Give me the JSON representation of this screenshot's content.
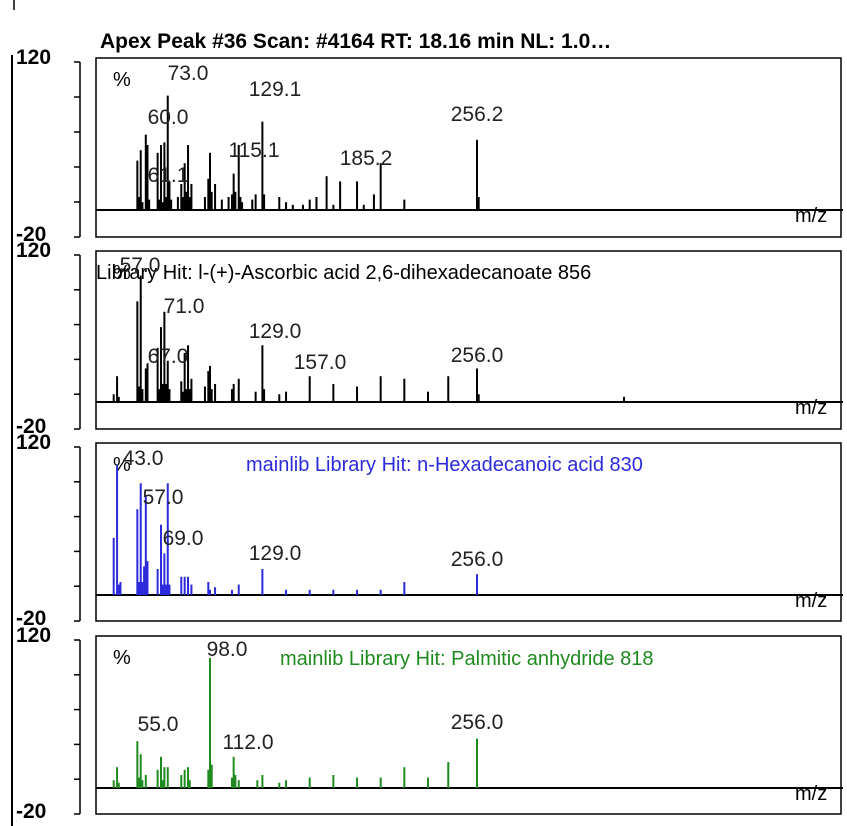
{
  "header": "Apex Peak #36 Scan: #4164   RT: 18.16 min NL: 1.0…",
  "colors": {
    "black": "#000000",
    "blue": "#2b2bdc",
    "green": "#1f8a1f"
  },
  "chart_data": [
    {
      "type": "bar",
      "series_label": "",
      "color": "black",
      "ylim": [
        -20,
        120
      ],
      "tick_labels": [
        "120",
        "-20"
      ],
      "y_unit": "%",
      "x_axis_label": "m/z",
      "peaks": [
        [
          55,
          38
        ],
        [
          56,
          10
        ],
        [
          57,
          46
        ],
        [
          58,
          6
        ],
        [
          60,
          58
        ],
        [
          61,
          50
        ],
        [
          62,
          8
        ],
        [
          67,
          44
        ],
        [
          68,
          8
        ],
        [
          69,
          50
        ],
        [
          70,
          6
        ],
        [
          71,
          52
        ],
        [
          72,
          10
        ],
        [
          73,
          88
        ],
        [
          74,
          22
        ],
        [
          75,
          8
        ],
        [
          79,
          10
        ],
        [
          81,
          20
        ],
        [
          82,
          10
        ],
        [
          83,
          36
        ],
        [
          84,
          14
        ],
        [
          85,
          50
        ],
        [
          86,
          10
        ],
        [
          87,
          20
        ],
        [
          95,
          10
        ],
        [
          97,
          24
        ],
        [
          98,
          44
        ],
        [
          99,
          14
        ],
        [
          101,
          20
        ],
        [
          105,
          8
        ],
        [
          109,
          10
        ],
        [
          111,
          12
        ],
        [
          112,
          28
        ],
        [
          113,
          14
        ],
        [
          115,
          50
        ],
        [
          116,
          10
        ],
        [
          117,
          6
        ],
        [
          123,
          8
        ],
        [
          125,
          12
        ],
        [
          129,
          68
        ],
        [
          130,
          12
        ],
        [
          139,
          10
        ],
        [
          143,
          6
        ],
        [
          147,
          4
        ],
        [
          153,
          4
        ],
        [
          157,
          8
        ],
        [
          161,
          10
        ],
        [
          167,
          26
        ],
        [
          171,
          4
        ],
        [
          175,
          22
        ],
        [
          185,
          22
        ],
        [
          189,
          4
        ],
        [
          195,
          12
        ],
        [
          199,
          36
        ],
        [
          213,
          8
        ],
        [
          256,
          54
        ],
        [
          257,
          10
        ]
      ],
      "labels": [
        {
          "text": "73.0",
          "mz": 73
        },
        {
          "text": "60.0",
          "mz": 60
        },
        {
          "text": "61.1",
          "mz": 61
        },
        {
          "text": "129.1",
          "mz": 129
        },
        {
          "text": "115.1",
          "mz": 115
        },
        {
          "text": "185.2",
          "mz": 185
        },
        {
          "text": "256.2",
          "mz": 256
        }
      ]
    },
    {
      "type": "bar",
      "series_label": "Library Hit: l-(+)-Ascorbic acid 2,6-dihexadecanoate 856",
      "color": "black",
      "ylim": [
        -20,
        120
      ],
      "tick_labels": [
        "120",
        "-20"
      ],
      "y_unit": "%",
      "x_axis_label": "m/z",
      "peaks": [
        [
          41,
          6
        ],
        [
          43,
          20
        ],
        [
          44,
          4
        ],
        [
          55,
          78
        ],
        [
          56,
          12
        ],
        [
          57,
          98
        ],
        [
          58,
          10
        ],
        [
          60,
          26
        ],
        [
          61,
          30
        ],
        [
          67,
          42
        ],
        [
          68,
          10
        ],
        [
          69,
          58
        ],
        [
          70,
          14
        ],
        [
          71,
          70
        ],
        [
          72,
          14
        ],
        [
          73,
          32
        ],
        [
          74,
          10
        ],
        [
          81,
          16
        ],
        [
          82,
          8
        ],
        [
          83,
          38
        ],
        [
          84,
          10
        ],
        [
          85,
          44
        ],
        [
          86,
          10
        ],
        [
          87,
          18
        ],
        [
          95,
          12
        ],
        [
          97,
          24
        ],
        [
          98,
          28
        ],
        [
          99,
          10
        ],
        [
          101,
          14
        ],
        [
          111,
          10
        ],
        [
          112,
          14
        ],
        [
          115,
          18
        ],
        [
          125,
          8
        ],
        [
          129,
          44
        ],
        [
          130,
          10
        ],
        [
          139,
          6
        ],
        [
          143,
          8
        ],
        [
          157,
          20
        ],
        [
          171,
          14
        ],
        [
          185,
          12
        ],
        [
          199,
          20
        ],
        [
          213,
          18
        ],
        [
          227,
          8
        ],
        [
          239,
          20
        ],
        [
          256,
          26
        ],
        [
          257,
          6
        ],
        [
          343,
          4
        ]
      ],
      "labels": [
        {
          "text": "57.0",
          "mz": 57
        },
        {
          "text": "71.0",
          "mz": 71
        },
        {
          "text": "67.0",
          "mz": 67
        },
        {
          "text": "129.0",
          "mz": 129
        },
        {
          "text": "157.0",
          "mz": 157
        },
        {
          "text": "256.0",
          "mz": 256
        }
      ]
    },
    {
      "type": "bar",
      "series_label": "mainlib Library Hit: n-Hexadecanoic acid 830",
      "color": "blue",
      "ylim": [
        -20,
        120
      ],
      "tick_labels": [
        "120",
        "-20"
      ],
      "y_unit": "%",
      "x_axis_label": "m/z",
      "peaks": [
        [
          41,
          44
        ],
        [
          43,
          100
        ],
        [
          44,
          8
        ],
        [
          45,
          10
        ],
        [
          55,
          66
        ],
        [
          56,
          10
        ],
        [
          57,
          86
        ],
        [
          58,
          10
        ],
        [
          59,
          22
        ],
        [
          60,
          76
        ],
        [
          61,
          26
        ],
        [
          67,
          20
        ],
        [
          69,
          54
        ],
        [
          70,
          8
        ],
        [
          71,
          32
        ],
        [
          72,
          8
        ],
        [
          73,
          86
        ],
        [
          74,
          8
        ],
        [
          81,
          14
        ],
        [
          83,
          14
        ],
        [
          85,
          14
        ],
        [
          87,
          8
        ],
        [
          97,
          10
        ],
        [
          98,
          4
        ],
        [
          101,
          6
        ],
        [
          111,
          4
        ],
        [
          115,
          8
        ],
        [
          129,
          20
        ],
        [
          143,
          4
        ],
        [
          157,
          4
        ],
        [
          171,
          4
        ],
        [
          185,
          4
        ],
        [
          199,
          4
        ],
        [
          213,
          10
        ],
        [
          256,
          16
        ]
      ],
      "labels": [
        {
          "text": "43.0",
          "mz": 43
        },
        {
          "text": "57.0",
          "mz": 57
        },
        {
          "text": "69.0",
          "mz": 69
        },
        {
          "text": "129.0",
          "mz": 129
        },
        {
          "text": "256.0",
          "mz": 256
        }
      ]
    },
    {
      "type": "bar",
      "series_label": "mainlib Library Hit: Palmitic anhydride 818",
      "color": "green",
      "ylim": [
        -20,
        120
      ],
      "tick_labels": [
        "120",
        "-20"
      ],
      "y_unit": "%",
      "x_axis_label": "m/z",
      "peaks": [
        [
          41,
          6
        ],
        [
          43,
          16
        ],
        [
          44,
          4
        ],
        [
          55,
          36
        ],
        [
          56,
          8
        ],
        [
          57,
          26
        ],
        [
          58,
          6
        ],
        [
          60,
          10
        ],
        [
          67,
          14
        ],
        [
          69,
          24
        ],
        [
          70,
          6
        ],
        [
          71,
          16
        ],
        [
          73,
          16
        ],
        [
          81,
          10
        ],
        [
          83,
          14
        ],
        [
          85,
          16
        ],
        [
          86,
          6
        ],
        [
          97,
          14
        ],
        [
          98,
          100
        ],
        [
          99,
          18
        ],
        [
          111,
          8
        ],
        [
          112,
          24
        ],
        [
          113,
          10
        ],
        [
          115,
          6
        ],
        [
          126,
          6
        ],
        [
          129,
          10
        ],
        [
          139,
          4
        ],
        [
          143,
          6
        ],
        [
          157,
          8
        ],
        [
          171,
          10
        ],
        [
          185,
          8
        ],
        [
          199,
          8
        ],
        [
          213,
          16
        ],
        [
          227,
          8
        ],
        [
          239,
          20
        ],
        [
          256,
          38
        ]
      ],
      "labels": [
        {
          "text": "98.0",
          "mz": 98
        },
        {
          "text": "55.0",
          "mz": 55
        },
        {
          "text": "112.0",
          "mz": 112
        },
        {
          "text": "256.0",
          "mz": 256
        }
      ]
    }
  ]
}
